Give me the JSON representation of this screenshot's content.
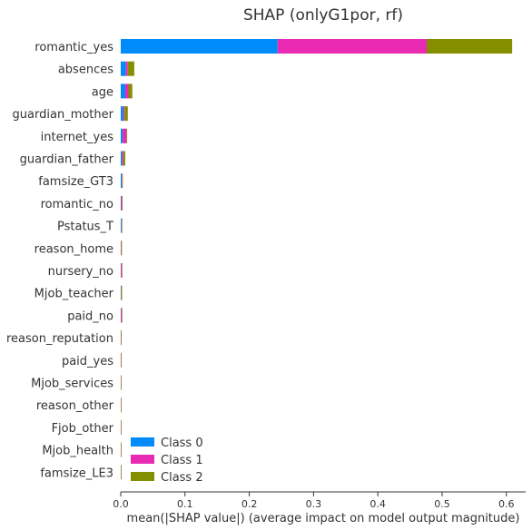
{
  "chart_data": {
    "type": "bar",
    "orientation": "horizontal",
    "stacked": true,
    "title": "SHAP (onlyG1por, rf)",
    "xlabel": "mean(|SHAP value|) (average impact on model output magnitude)",
    "ylabel": "",
    "xlim": [
      0,
      0.63
    ],
    "xticks": [
      "0.0",
      "0.1",
      "0.2",
      "0.3",
      "0.4",
      "0.5",
      "0.6"
    ],
    "grid": false,
    "legend_position": "bottom-left",
    "categories": [
      "romantic_yes",
      "absences",
      "age",
      "guardian_mother",
      "internet_yes",
      "guardian_father",
      "famsize_GT3",
      "romantic_no",
      "Pstatus_T",
      "reason_home",
      "nursery_no",
      "Mjob_teacher",
      "paid_no",
      "reason_reputation",
      "paid_yes",
      "Mjob_services",
      "reason_other",
      "Fjob_other",
      "Mjob_health",
      "famsize_LE3"
    ],
    "series": [
      {
        "name": "Class 0",
        "color": "#008bfb",
        "values": [
          0.244,
          0.008,
          0.007,
          0.004,
          0.003,
          0.002,
          0.0015,
          0.0005,
          0.0012,
          0.0002,
          0.0002,
          0.0003,
          0.0002,
          0.0002,
          0.0002,
          0.0001,
          0.0001,
          0.0001,
          0.0001,
          0.0001
        ]
      },
      {
        "name": "Class 1",
        "color": "#e92ab3",
        "values": [
          0.232,
          0.003,
          0.005,
          0.002,
          0.006,
          0.002,
          0.0008,
          0.0015,
          0.0003,
          0.0004,
          0.0015,
          0.0004,
          0.0015,
          0.0002,
          0.0002,
          0.0001,
          0.0001,
          0.0001,
          0.0001,
          0.0001
        ]
      },
      {
        "name": "Class 2",
        "color": "#848f00",
        "values": [
          0.133,
          0.01,
          0.006,
          0.005,
          0.001,
          0.003,
          0.0003,
          0.0006,
          0.0002,
          0.0012,
          0.0003,
          0.0013,
          0.0003,
          0.0001,
          0.0002,
          0.0001,
          0.0001,
          0.0001,
          0.0001,
          0.0001
        ]
      }
    ]
  }
}
